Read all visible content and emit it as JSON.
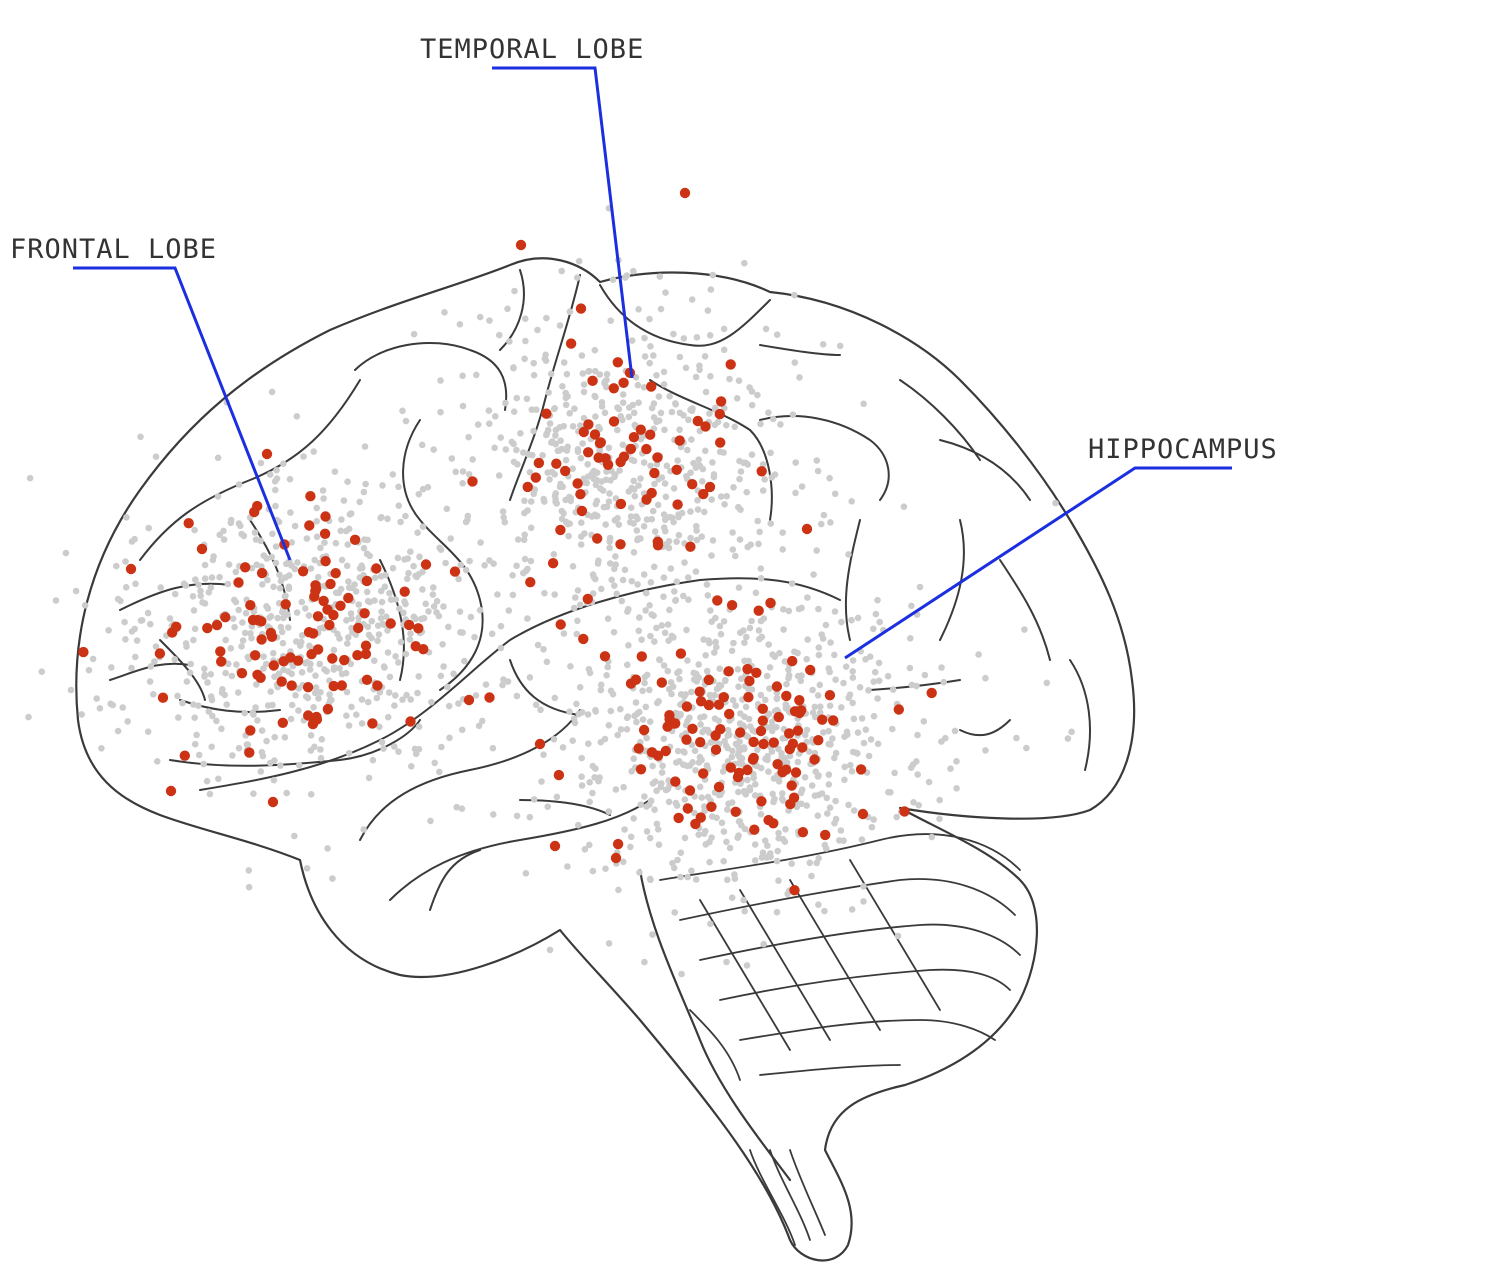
{
  "labels": {
    "frontal": "FRONTAL LOBE",
    "temporal": "TEMPORAL LOBE",
    "hippocampus": "HIPPOCAMPUS"
  },
  "colors": {
    "background": "#ffffff",
    "outline": "#3a3a3a",
    "leader": "#1b2fe0",
    "label_text": "#333333",
    "dot_gray": "#cccccc",
    "dot_red": "#cc3314"
  },
  "icons": {
    "brain": "brain-outline-icon"
  },
  "dot_clusters": [
    {
      "region": "frontal",
      "gray_count": 620,
      "red_count": 95
    },
    {
      "region": "temporal",
      "gray_count": 560,
      "red_count": 62
    },
    {
      "region": "hippocampus",
      "gray_count": 780,
      "red_count": 105
    }
  ]
}
